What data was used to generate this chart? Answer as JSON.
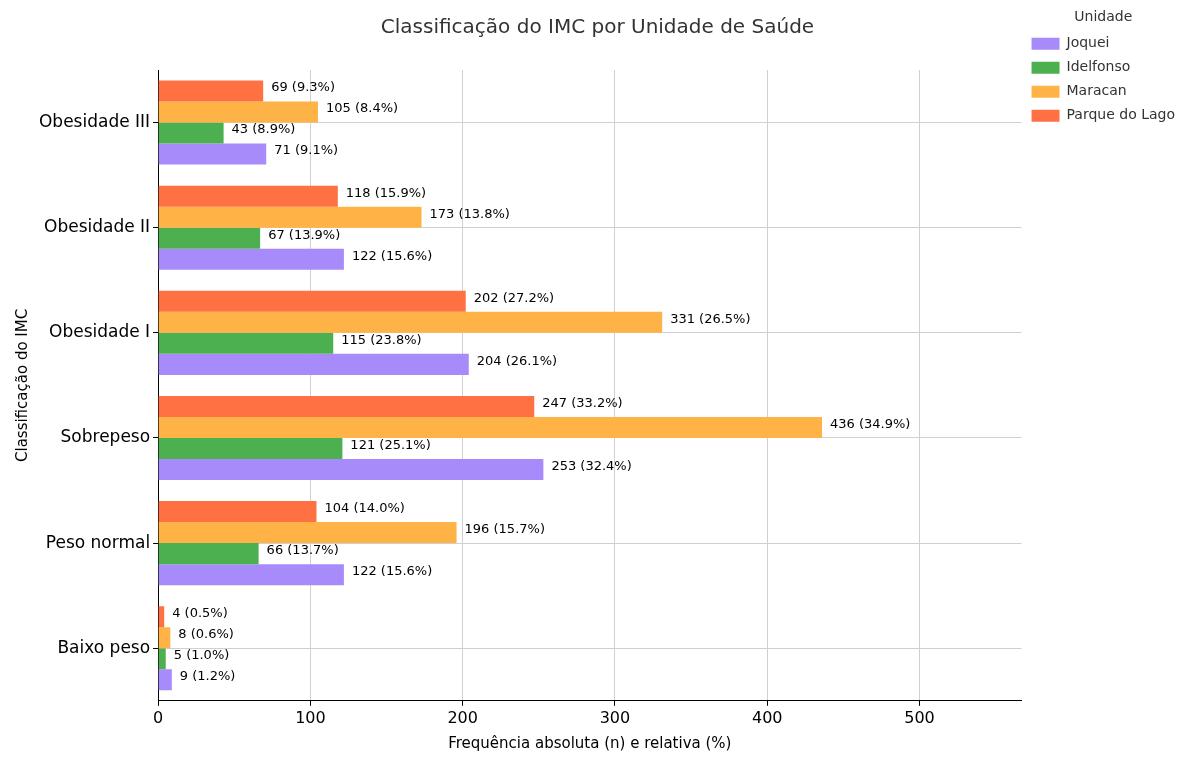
{
  "chart_data": {
    "type": "bar",
    "orientation": "horizontal",
    "title": "Classificação do IMC por Unidade de Saúde",
    "xlabel": "Frequência absoluta (n) e relativa (%)",
    "ylabel": "Classificação do IMC",
    "legend_title": "Unidade",
    "legend": "top right",
    "grid": true,
    "categories": [
      "Obesidade III",
      "Obesidade II",
      "Obesidade I",
      "Sobrepeso",
      "Peso normal",
      "Baixo peso"
    ],
    "xlim": [
      0,
      567
    ],
    "xticks": [
      0,
      100,
      200,
      300,
      400,
      500
    ],
    "series": [
      {
        "name": "Joquei",
        "color": "#a78bfa",
        "values": [
          71,
          122,
          204,
          253,
          122,
          9
        ],
        "value_labels": [
          "71 (9.1%)",
          "122 (15.6%)",
          "204 (26.1%)",
          "253 (32.4%)",
          "122 (15.6%)",
          "9 (1.2%)"
        ]
      },
      {
        "name": "Idelfonso",
        "color": "#4caf50",
        "values": [
          43,
          67,
          115,
          121,
          66,
          5
        ],
        "value_labels": [
          "43 (8.9%)",
          "67 (13.9%)",
          "115 (23.8%)",
          "121 (25.1%)",
          "66 (13.7%)",
          "5 (1.0%)"
        ]
      },
      {
        "name": "Maracan",
        "color": "#ffb347",
        "values": [
          105,
          173,
          331,
          436,
          196,
          8
        ],
        "value_labels": [
          "105 (8.4%)",
          "173 (13.8%)",
          "331 (26.5%)",
          "436 (34.9%)",
          "196 (15.7%)",
          "8 (0.6%)"
        ]
      },
      {
        "name": "Parque do Lago",
        "color": "#ff7043",
        "values": [
          69,
          118,
          202,
          247,
          104,
          4
        ],
        "value_labels": [
          "69 (9.3%)",
          "118 (15.9%)",
          "202 (27.2%)",
          "247 (33.2%)",
          "104 (14.0%)",
          "4 (0.5%)"
        ]
      }
    ]
  }
}
